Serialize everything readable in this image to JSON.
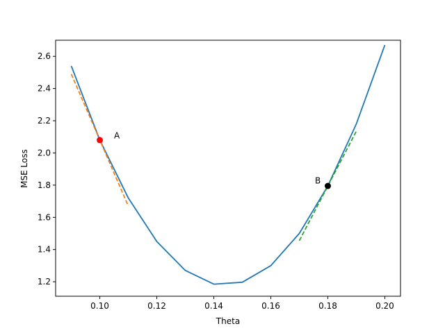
{
  "chart_data": {
    "type": "line",
    "title": "",
    "xlabel": "Theta",
    "ylabel": "MSE Loss",
    "xlim": [
      0.0845,
      0.2055
    ],
    "ylim": [
      1.11,
      2.7
    ],
    "grid": false,
    "xticks": [
      0.1,
      0.12,
      0.14,
      0.16,
      0.18,
      0.2
    ],
    "xtick_labels": [
      "0.10",
      "0.12",
      "0.14",
      "0.16",
      "0.18",
      "0.20"
    ],
    "yticks": [
      1.2,
      1.4,
      1.6,
      1.8,
      2.0,
      2.2,
      2.4,
      2.6
    ],
    "ytick_labels": [
      "1.2",
      "1.4",
      "1.6",
      "1.8",
      "2.0",
      "2.2",
      "2.4",
      "2.6"
    ],
    "series": [
      {
        "style": "solid",
        "color": "#1f77b4",
        "x": [
          0.09,
          0.1,
          0.11,
          0.12,
          0.13,
          0.14,
          0.15,
          0.16,
          0.17,
          0.18,
          0.19,
          0.2
        ],
        "y": [
          2.54,
          2.08,
          1.72,
          1.45,
          1.27,
          1.185,
          1.197,
          1.3,
          1.5,
          1.795,
          2.18,
          2.67
        ]
      },
      {
        "style": "dashed",
        "color": "#ff7f0e",
        "x": [
          0.09,
          0.11
        ],
        "y": [
          2.49,
          1.67
        ]
      },
      {
        "style": "dashed",
        "color": "#2ca02c",
        "x": [
          0.17,
          0.19
        ],
        "y": [
          1.455,
          2.135
        ]
      }
    ],
    "points": [
      {
        "label": "A",
        "x": 0.1,
        "y": 2.08,
        "color": "#ff0000",
        "label_x": 0.105,
        "label_y": 2.09
      },
      {
        "label": "B",
        "x": 0.18,
        "y": 1.795,
        "color": "#000000",
        "label_x": 0.1755,
        "label_y": 1.81
      }
    ]
  }
}
